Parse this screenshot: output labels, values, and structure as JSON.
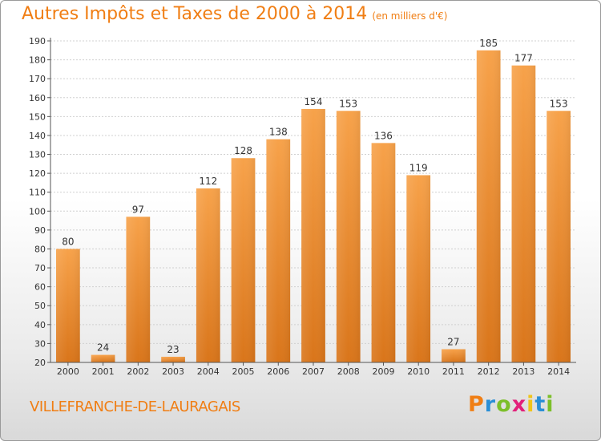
{
  "title": "Autres Impôts et Taxes de 2000 à 2014",
  "subtitle": "(en milliers d'€)",
  "commune": "VILLEFRANCHE-DE-LAURAGAIS",
  "logo": {
    "letters": [
      "P",
      "r",
      "o",
      "x",
      "i",
      "t",
      "i"
    ],
    "colors": [
      "#f07e14",
      "#2a8fd6",
      "#7cbf2a",
      "#e2207a",
      "#f0c419",
      "#2a8fd6",
      "#7cbf2a"
    ]
  },
  "colors": {
    "accent": "#f07e14",
    "bar_top": "#f7a24a",
    "bar_bottom": "#d9751a",
    "grid": "#d0d0d0",
    "axis_text": "#333333"
  },
  "chart_data": {
    "type": "bar",
    "categories": [
      "2000",
      "2001",
      "2002",
      "2003",
      "2004",
      "2005",
      "2006",
      "2007",
      "2008",
      "2009",
      "2010",
      "2011",
      "2012",
      "2013",
      "2014"
    ],
    "values": [
      80,
      24,
      97,
      23,
      112,
      128,
      138,
      154,
      153,
      136,
      119,
      27,
      185,
      177,
      153
    ],
    "ylim": [
      20,
      190
    ],
    "yticks": [
      20,
      30,
      40,
      50,
      60,
      70,
      80,
      90,
      100,
      110,
      120,
      130,
      140,
      150,
      160,
      170,
      180,
      190
    ],
    "grid": true,
    "xlabel": "",
    "ylabel": ""
  }
}
